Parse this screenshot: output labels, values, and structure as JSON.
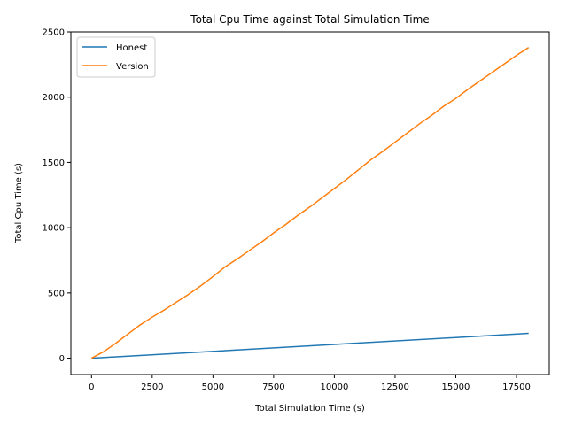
{
  "chart_data": {
    "type": "line",
    "title": "Total Cpu Time against Total Simulation Time",
    "xlabel": "Total Simulation Time (s)",
    "ylabel": "Total Cpu Time (s)",
    "xlim": [
      -850,
      18850
    ],
    "ylim": [
      -125,
      2500
    ],
    "xticks": [
      0,
      2500,
      5000,
      7500,
      10000,
      12500,
      15000,
      17500
    ],
    "yticks": [
      0,
      500,
      1000,
      1500,
      2000,
      2500
    ],
    "grid": false,
    "legend_position": "top-left",
    "series": [
      {
        "name": "Honest",
        "color": "#1f77b4",
        "x": [
          0,
          18000
        ],
        "y": [
          0,
          190
        ]
      },
      {
        "name": "Version",
        "color": "#ff7f0e",
        "x": [
          0,
          500,
          1000,
          1500,
          2000,
          2500,
          3000,
          3500,
          4000,
          4500,
          5000,
          5500,
          6000,
          6500,
          7000,
          7500,
          8000,
          8500,
          9000,
          9500,
          10000,
          10500,
          11000,
          11500,
          12000,
          12500,
          13000,
          13500,
          14000,
          14500,
          15000,
          15500,
          16000,
          16500,
          17000,
          17500,
          18000
        ],
        "y": [
          0,
          50,
          115,
          185,
          255,
          315,
          370,
          430,
          490,
          555,
          625,
          700,
          760,
          825,
          890,
          960,
          1025,
          1095,
          1160,
          1230,
          1300,
          1370,
          1445,
          1520,
          1585,
          1655,
          1725,
          1795,
          1860,
          1930,
          1990,
          2060,
          2125,
          2190,
          2255,
          2320,
          2380
        ]
      }
    ]
  }
}
